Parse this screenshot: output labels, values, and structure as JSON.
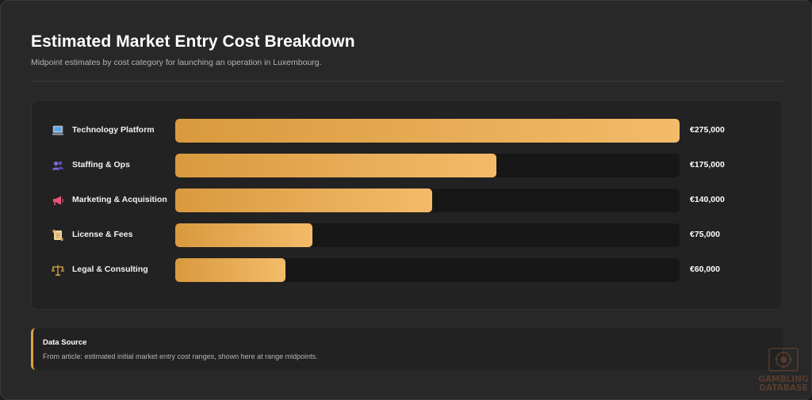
{
  "header": {
    "title": "Estimated Market Entry Cost Breakdown",
    "subtitle": "Midpoint estimates by cost category for launching an operation in Luxembourg."
  },
  "chart_data": {
    "type": "bar",
    "orientation": "horizontal",
    "title": "Estimated Market Entry Cost Breakdown",
    "subtitle": "Midpoint estimates by cost category for launching an operation in Luxembourg.",
    "categories": [
      "Technology Platform",
      "Staffing & Ops",
      "Marketing & Acquisition",
      "License & Fees",
      "Legal & Consulting"
    ],
    "values": [
      275000,
      175000,
      140000,
      75000,
      60000
    ],
    "value_labels": [
      "€275,000",
      "€175,000",
      "€140,000",
      "€75,000",
      "€60,000"
    ],
    "icons": [
      "laptop-icon",
      "people-icon",
      "megaphone-icon",
      "scroll-icon",
      "scales-icon"
    ],
    "xlim": [
      0,
      275000
    ],
    "grid": false,
    "bar_color_start": "#d99a3e",
    "bar_color_end": "#f3bb69",
    "track_color": "#171717"
  },
  "source": {
    "title": "Data Source",
    "text": "From article: estimated initial market entry cost ranges, shown here at range midpoints.",
    "accent": "#e0a147"
  },
  "watermark": {
    "line1": "GAMBLING",
    "line2": "DATABASE"
  }
}
